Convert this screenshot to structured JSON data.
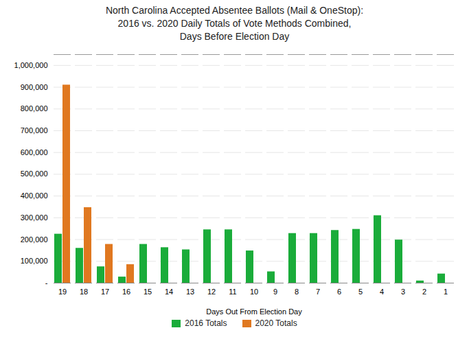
{
  "chart_data": {
    "type": "bar",
    "title": "North Carolina Accepted Absentee Ballots (Mail & OneStop):\n2016 vs. 2020 Daily Totals of Vote Methods Combined,\nDays Before Election Day",
    "xlabel": "Days Out From Election Day",
    "categories": [
      "19",
      "18",
      "17",
      "16",
      "15",
      "14",
      "13",
      "12",
      "11",
      "10",
      "9",
      "8",
      "7",
      "6",
      "5",
      "4",
      "3",
      "2",
      "1"
    ],
    "series": [
      {
        "name": "2016 Totals",
        "color": "#1aac3a",
        "values": [
          225000,
          160000,
          75000,
          28000,
          178000,
          163000,
          153000,
          245000,
          245000,
          148000,
          52000,
          228000,
          228000,
          242000,
          247000,
          310000,
          198000,
          10000,
          42000
        ]
      },
      {
        "name": "2020 Totals",
        "color": "#e07820",
        "values": [
          910000,
          347000,
          178000,
          85000,
          0,
          0,
          0,
          0,
          0,
          0,
          0,
          0,
          0,
          0,
          0,
          0,
          0,
          0,
          0
        ]
      }
    ],
    "ylim": [
      0,
      1050000
    ],
    "yticks": [
      {
        "value": 0,
        "label": "-"
      },
      {
        "value": 100000,
        "label": "100,000"
      },
      {
        "value": 200000,
        "label": "200,000"
      },
      {
        "value": 300000,
        "label": "300,000"
      },
      {
        "value": 400000,
        "label": "400,000"
      },
      {
        "value": 500000,
        "label": "500,000"
      },
      {
        "value": 600000,
        "label": "600,000"
      },
      {
        "value": 700000,
        "label": "700,000"
      },
      {
        "value": 800000,
        "label": "800,000"
      },
      {
        "value": 900000,
        "label": "900,000"
      },
      {
        "value": 1000000,
        "label": "1,000,000"
      }
    ],
    "grid": true,
    "legend": "bottom"
  }
}
